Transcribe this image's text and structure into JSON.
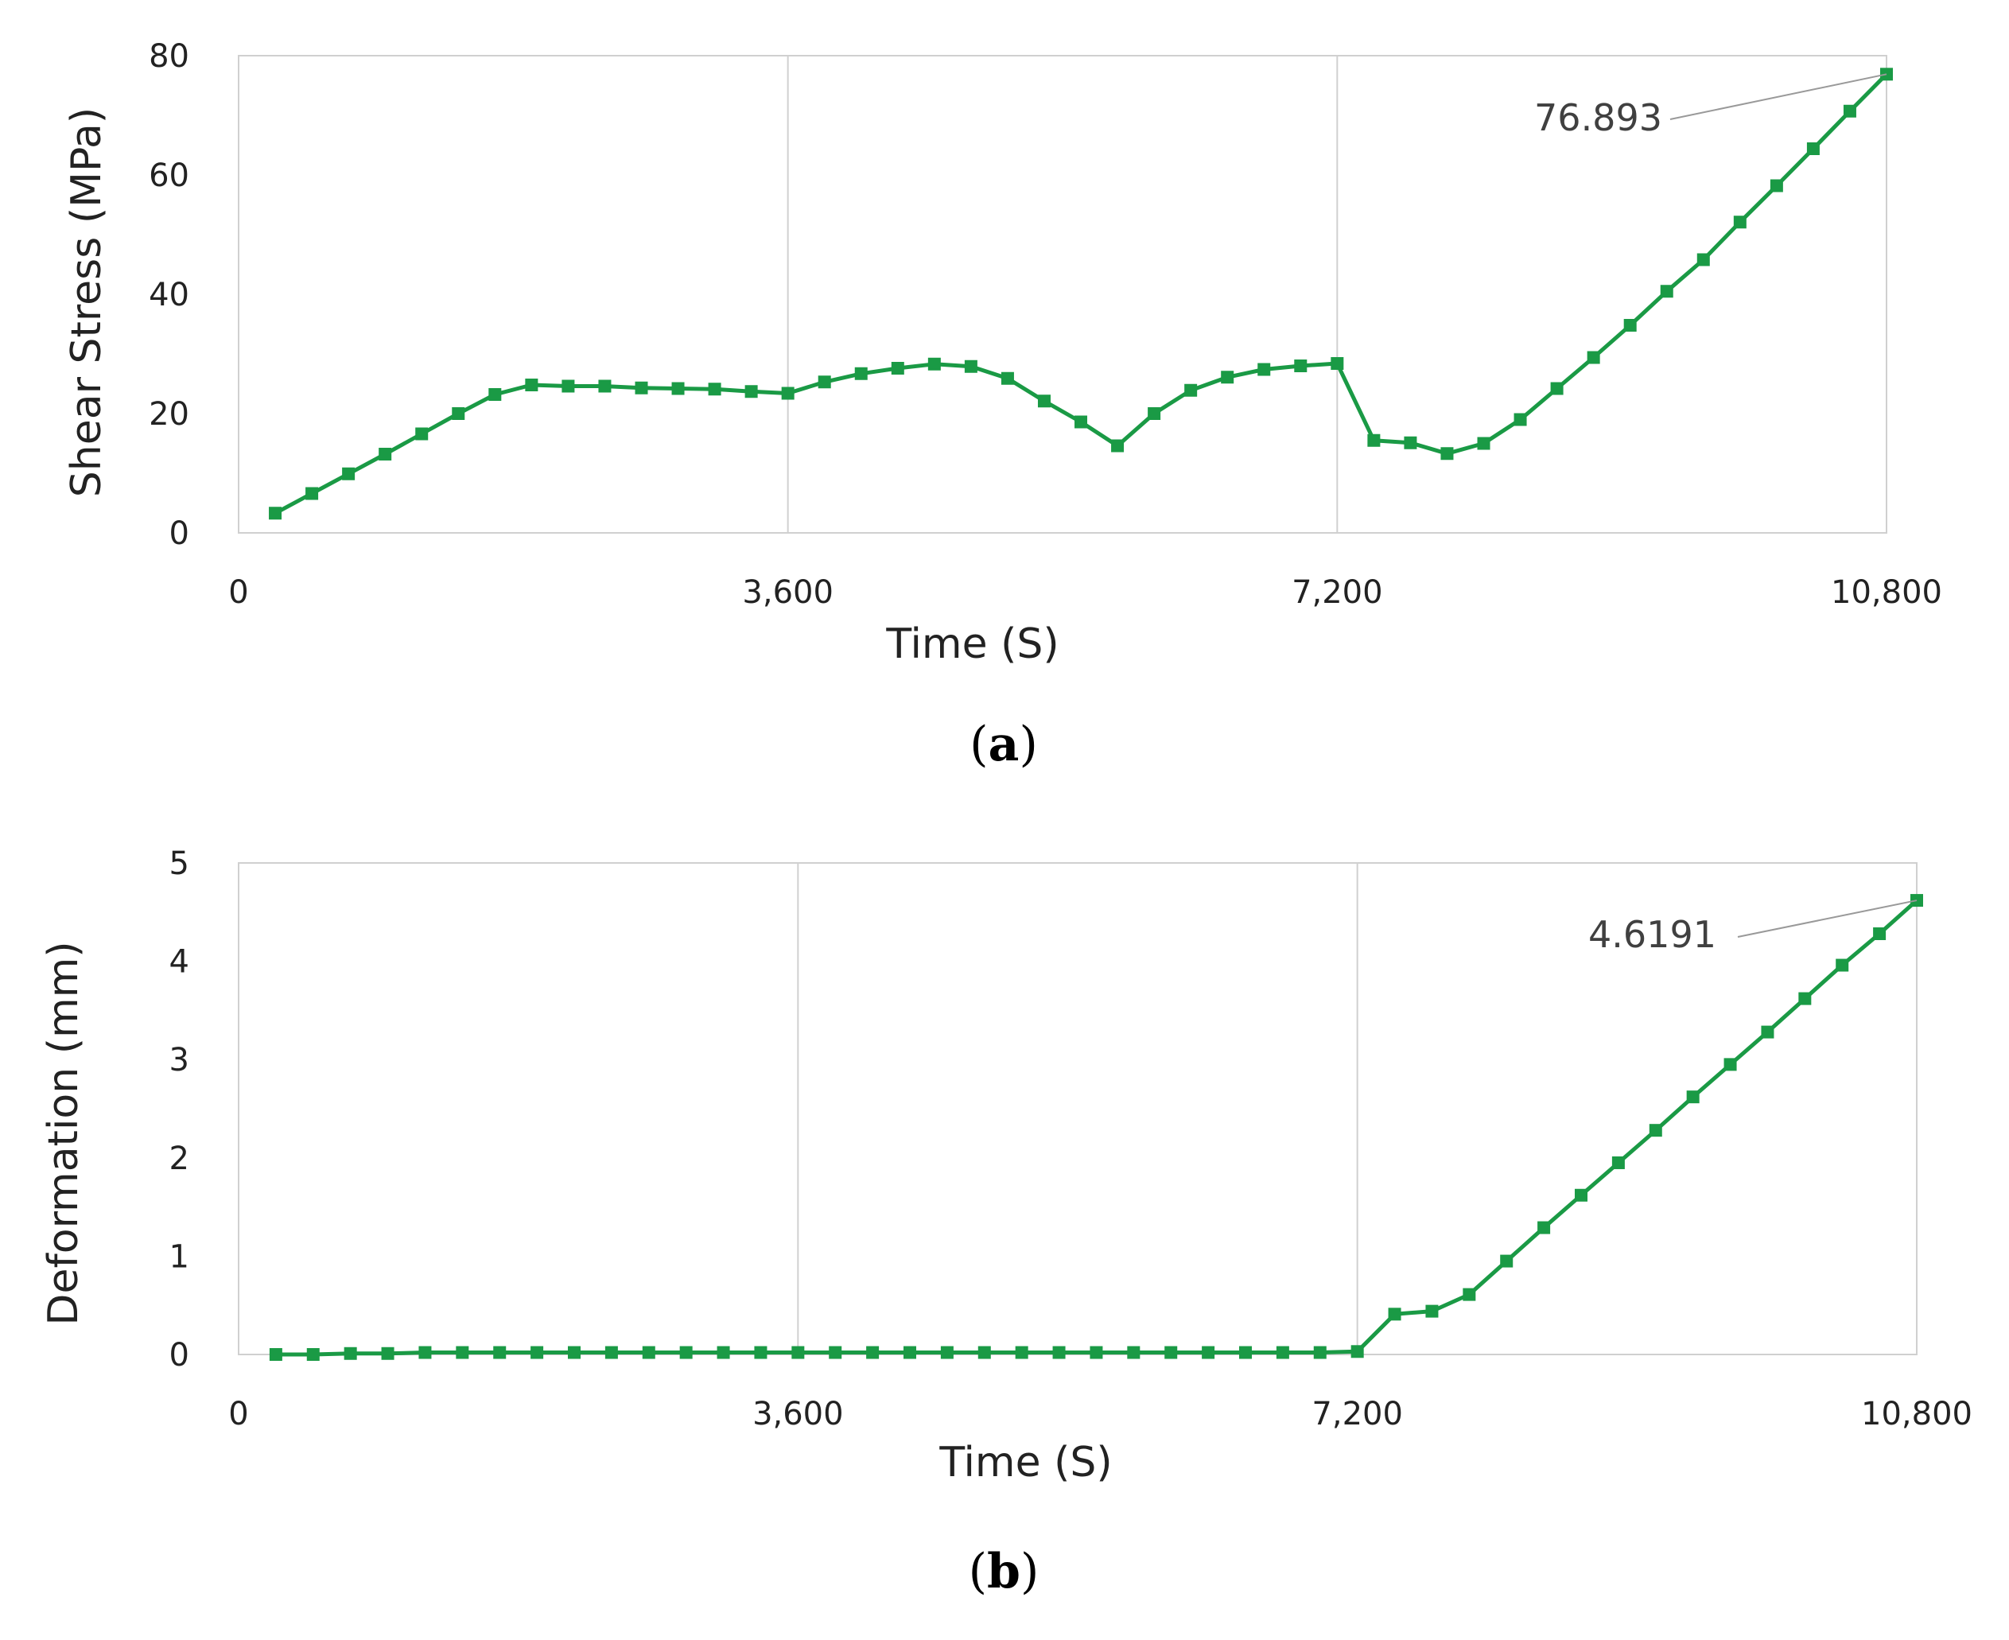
{
  "colors": {
    "series": "#1a9a45",
    "grid": "#d0d0d0",
    "frame": "#d0d0d0",
    "leader": "#999999"
  },
  "chart_data": [
    {
      "type": "line",
      "panel_label": "a",
      "xlabel": "Time (S)",
      "ylabel": "Shear Stress (MPa)",
      "xlim": [
        0,
        10800
      ],
      "ylim": [
        0,
        80
      ],
      "xticks": [
        0,
        3600,
        7200,
        10800
      ],
      "xtick_labels": [
        "0",
        "3,600",
        "7,200",
        "10,800"
      ],
      "yticks": [
        0,
        20,
        40,
        60,
        80
      ],
      "ytick_labels": [
        "0",
        "20",
        "40",
        "60",
        "80"
      ],
      "grid": "vertical",
      "marker": "square",
      "annotation": {
        "text": "76.893",
        "x": 10800,
        "y": 76.893
      },
      "series": [
        {
          "x": [
            240,
            480,
            720,
            960,
            1200,
            1440,
            1680,
            1920,
            2160,
            2400,
            2640,
            2880,
            3120,
            3360,
            3600,
            3840,
            4080,
            4320,
            4560,
            4800,
            5040,
            5280,
            5520,
            5760,
            6000,
            6240,
            6480,
            6720,
            6960,
            7200,
            7440,
            7680,
            7920,
            8160,
            8400,
            8640,
            8880,
            9120,
            9360,
            9600,
            9840,
            10080,
            10320,
            10560,
            10800
          ],
          "y": [
            3.3,
            6.6,
            9.9,
            13.2,
            16.6,
            20.0,
            23.2,
            24.8,
            24.6,
            24.6,
            24.3,
            24.2,
            24.1,
            23.7,
            23.4,
            25.3,
            26.7,
            27.6,
            28.3,
            27.9,
            25.9,
            22.1,
            18.6,
            14.6,
            20.0,
            23.9,
            26.1,
            27.4,
            28.0,
            28.4,
            15.5,
            15.1,
            13.3,
            15.0,
            19.0,
            24.2,
            29.4,
            34.8,
            40.5,
            45.8,
            52.1,
            58.2,
            64.4,
            70.7,
            76.893
          ]
        }
      ]
    },
    {
      "type": "line",
      "panel_label": "b",
      "xlabel": "Time (S)",
      "ylabel": "Deformation (mm)",
      "xlim": [
        0,
        10800
      ],
      "ylim": [
        0,
        5
      ],
      "xticks": [
        0,
        3600,
        7200,
        10800
      ],
      "xtick_labels": [
        "0",
        "3,600",
        "7,200",
        "10,800"
      ],
      "yticks": [
        0,
        1,
        2,
        3,
        4,
        5
      ],
      "ytick_labels": [
        "0",
        "1",
        "2",
        "3",
        "4",
        "5"
      ],
      "grid": "vertical",
      "marker": "square",
      "annotation": {
        "text": "4.6191",
        "x": 10800,
        "y": 4.6191
      },
      "series": [
        {
          "x": [
            240,
            480,
            720,
            960,
            1200,
            1440,
            1680,
            1920,
            2160,
            2400,
            2640,
            2880,
            3120,
            3360,
            3600,
            3840,
            4080,
            4320,
            4560,
            4800,
            5040,
            5280,
            5520,
            5760,
            6000,
            6240,
            6480,
            6720,
            6960,
            7200,
            7440,
            7680,
            7920,
            8160,
            8400,
            8640,
            8880,
            9120,
            9360,
            9600,
            9840,
            10080,
            10320,
            10560,
            10800
          ],
          "y": [
            0.0,
            0.0,
            0.01,
            0.01,
            0.02,
            0.02,
            0.02,
            0.02,
            0.02,
            0.02,
            0.02,
            0.02,
            0.02,
            0.02,
            0.02,
            0.02,
            0.02,
            0.02,
            0.02,
            0.02,
            0.02,
            0.02,
            0.02,
            0.02,
            0.02,
            0.02,
            0.02,
            0.02,
            0.02,
            0.03,
            0.41,
            0.44,
            0.61,
            0.95,
            1.29,
            1.62,
            1.95,
            2.28,
            2.62,
            2.95,
            3.28,
            3.62,
            3.96,
            4.28,
            4.6191
          ]
        }
      ]
    }
  ]
}
